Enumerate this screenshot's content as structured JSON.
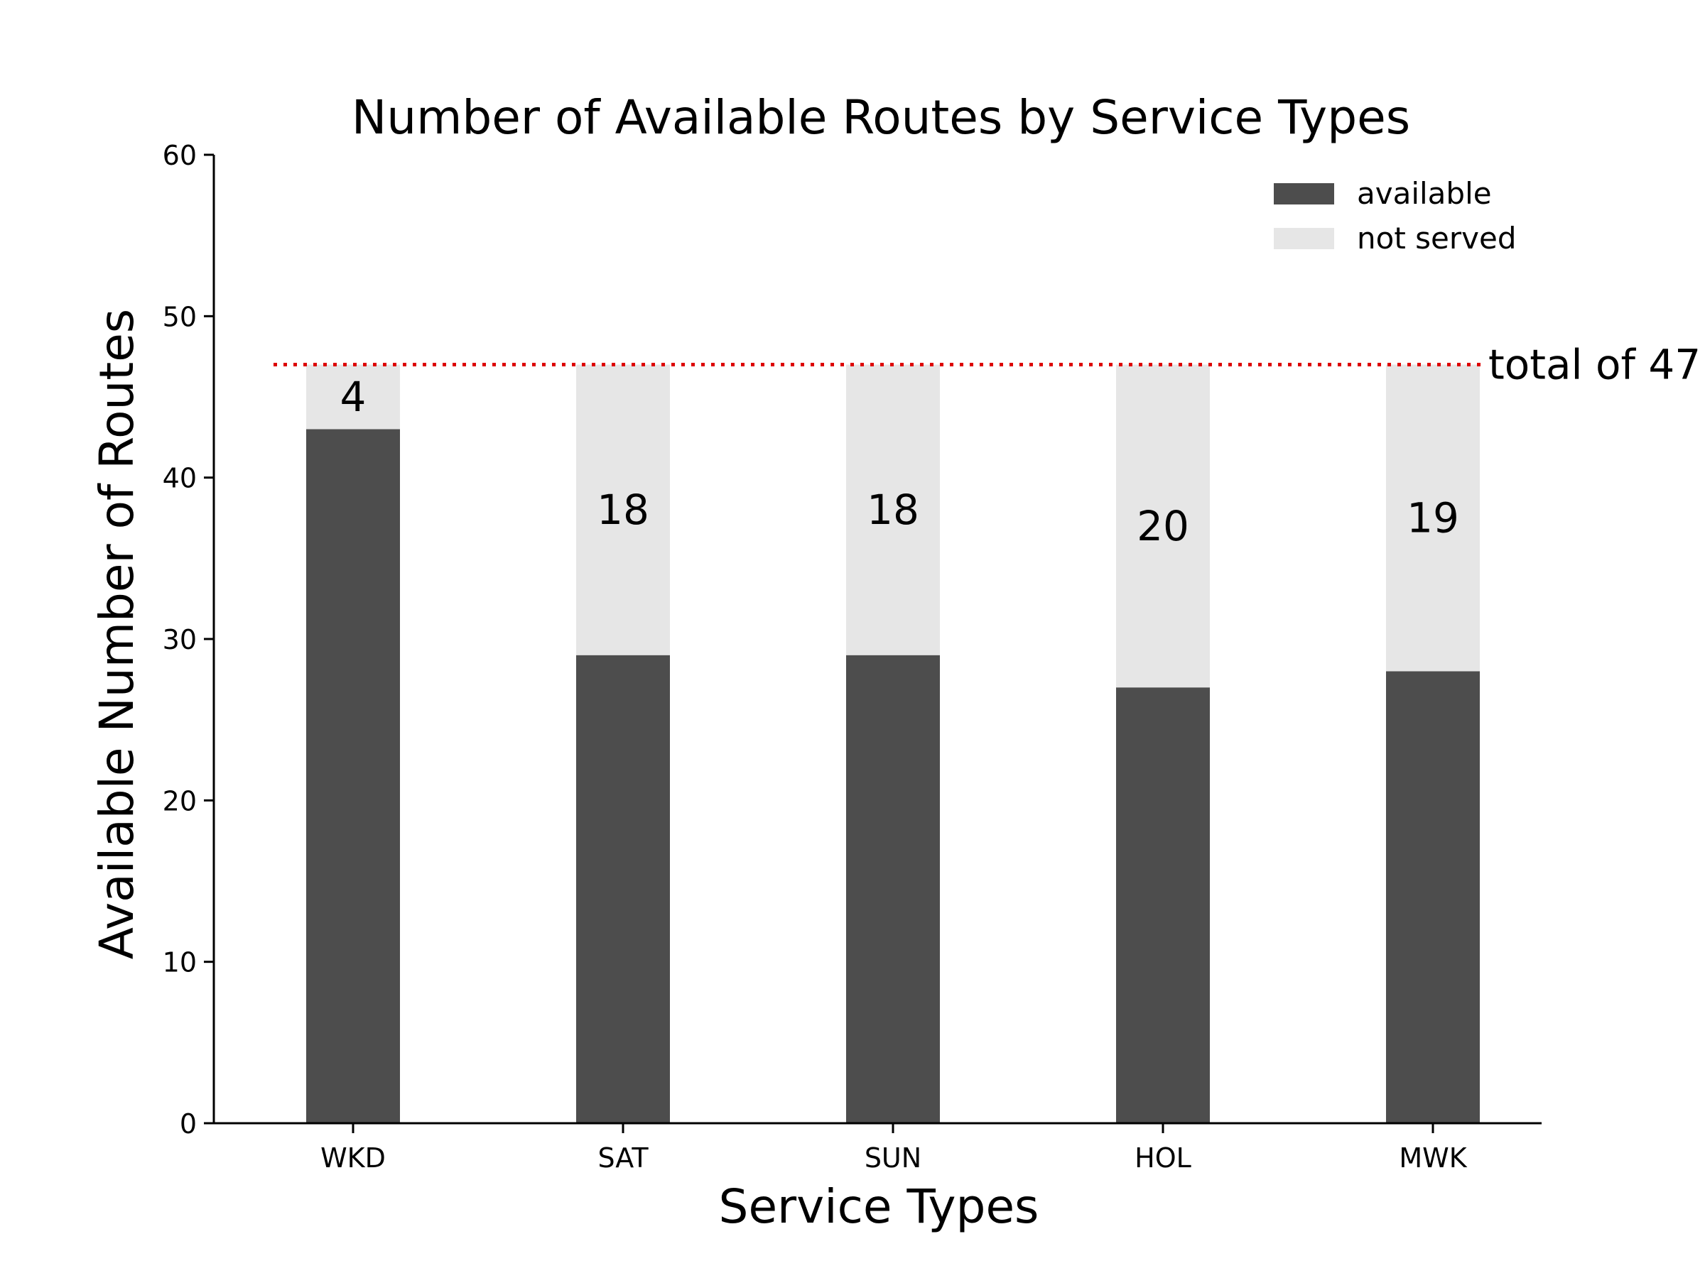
{
  "chart_data": {
    "type": "bar",
    "stacked": true,
    "title": "Number of Available Routes by Service Types",
    "xlabel": "Service Types",
    "ylabel": "Available Number of Routes",
    "categories": [
      "WKD",
      "SAT",
      "SUN",
      "HOL",
      "MWK"
    ],
    "series": [
      {
        "name": "available",
        "values": [
          43,
          29,
          29,
          27,
          28
        ],
        "color": "#4d4d4d"
      },
      {
        "name": "not served",
        "values": [
          4,
          18,
          18,
          20,
          19
        ],
        "color": "#e6e6e6"
      }
    ],
    "bar_labels": [
      "4",
      "18",
      "18",
      "20",
      "19"
    ],
    "ylim": [
      0,
      60
    ],
    "yticks": [
      0,
      10,
      20,
      30,
      40,
      50,
      60
    ],
    "grid": false,
    "legend_position": "top-right",
    "reference_line": {
      "value": 47,
      "label": "total of 47",
      "color": "#dd0000",
      "style": "dotted"
    }
  }
}
